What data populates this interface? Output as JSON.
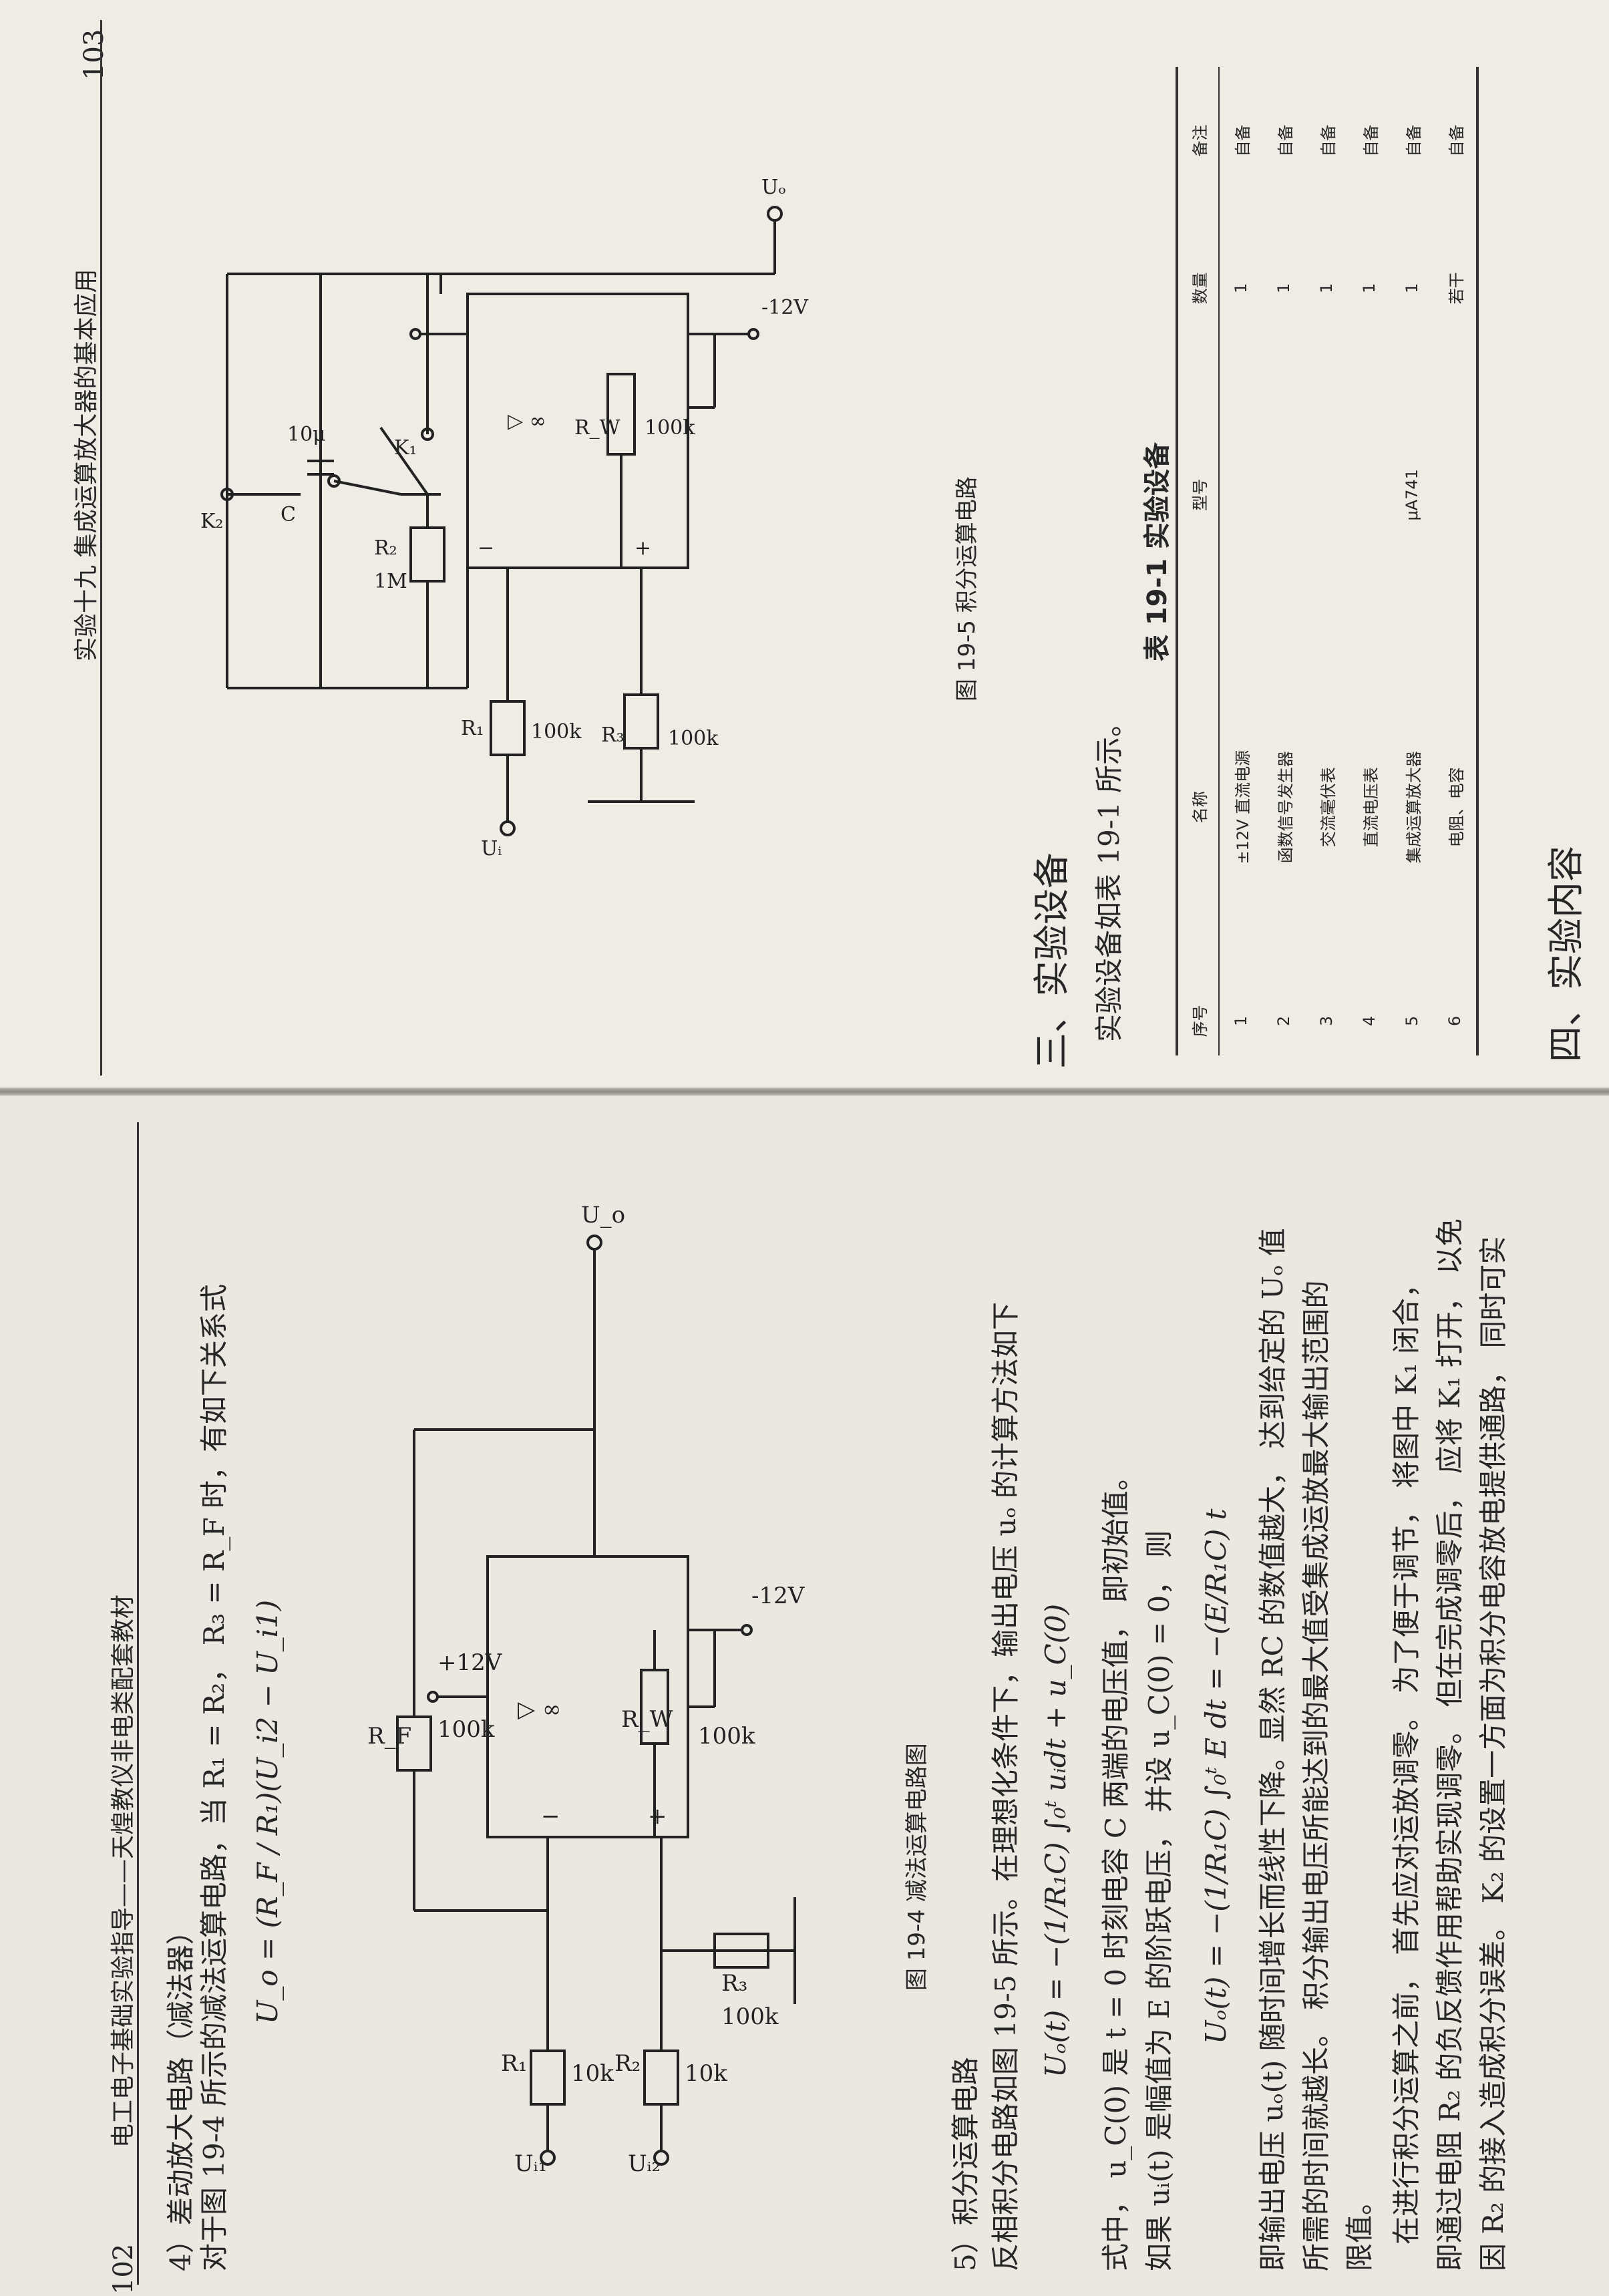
{
  "left_page": {
    "page_number": "102",
    "header": "电工电子基础实验指导——天煌教仪非电类配套教材",
    "sec4_title": "4）差动放大电路（减法器）",
    "sec4_para": "对于图 19-4 所示的减法运算电路，当 R₁ = R₂， R₃ = R_F 时，有如下关系式",
    "formula1": "U_o = (R_F / R₁)(U_i2 − U_i1)",
    "fig4_caption": "图 19-4   减法运算电路图",
    "fig4_labels": {
      "ui1": "Uᵢ₁",
      "ui2": "Uᵢ₂",
      "r1": "R₁",
      "r1v": "10k",
      "r2": "R₂",
      "r2v": "10k",
      "r3": "R₃",
      "r3v": "100k",
      "rf": "R_F",
      "rfv": "100k",
      "rw": "R_W",
      "rwv": "100k",
      "vpos": "+12V",
      "vneg": "-12V",
      "uo": "U_o",
      "inf": "▷ ∞",
      "minus": "−",
      "plus": "+"
    },
    "sec5_title": "5）积分运算电路",
    "sec5_p1": "反相积分电路如图 19-5 所示。在理想化条件下，输出电压 uₒ 的计算方法如下",
    "formula2": "Uₒ(t) = −(1/R₁C) ∫₀ᵗ uᵢdt + u_C(0)",
    "sec5_p2": "式中， u_C(0) 是 t = 0 时刻电容 C 两端的电压值， 即初始值。",
    "sec5_p3": "如果 uᵢ(t) 是幅值为 E 的阶跃电压， 并设 u_C(0) = 0， 则",
    "formula3": "Uₒ(t) = −(1/R₁C) ∫₀ᵗ E dt = −(E/R₁C) t",
    "sec5_p4": "即输出电压 uₒ(t) 随时间增长而线性下降。显然 RC 的数值越大， 达到给定的 Uₒ 值",
    "sec5_p5": "所需的时间就越长。 积分输出电压所能达到的最大值受集成运放最大输出范围的",
    "sec5_p6": "限值。",
    "sec5_p7": "在进行积分运算之前， 首先应对运放调零。 为了便于调节， 将图中 K₁ 闭合，",
    "sec5_p8": "即通过电阻 R₂ 的负反馈作用帮助实现调零。 但在完成调零后， 应将 K₁ 打开， 以免",
    "sec5_p9": "因 R₂ 的接入造成积分误差。 K₂ 的设置一方面为积分电容放电提供通路， 同时可实"
  },
  "right_page": {
    "page_number": "103",
    "header": "实验十九   集成运算放大器的基本应用",
    "fig5_caption": "图 19-5   积分运算电路",
    "fig5_labels": {
      "k2": "K₂",
      "c": "C",
      "cv": "10μ",
      "r2": "R₂",
      "r2v": "1M",
      "k1": "K₁",
      "r1": "R₁",
      "r1v": "100k",
      "r3": "R₃",
      "r3v": "100k",
      "rw": "R_W",
      "rwv": "100k",
      "vneg": "-12V",
      "ui": "Uᵢ",
      "uo": "Uₒ",
      "inf": "▷ ∞",
      "minus": "−",
      "plus": "+"
    },
    "sec3_title": "三、实验设备",
    "sec3_para": "实验设备如表 19-1 所示。",
    "table_caption": "表 19-1   实验设备",
    "table_headers": [
      "序号",
      "名称",
      "型号",
      "数量",
      "备注"
    ],
    "table_rows": [
      [
        "1",
        "±12V 直流电源",
        "",
        "1",
        "自备"
      ],
      [
        "2",
        "函数信号发生器",
        "",
        "1",
        "自备"
      ],
      [
        "3",
        "交流毫伏表",
        "",
        "1",
        "自备"
      ],
      [
        "4",
        "直流电压表",
        "",
        "1",
        "自备"
      ],
      [
        "5",
        "集成运算放大器",
        "μA741",
        "1",
        "自备"
      ],
      [
        "6",
        "电阻、电容",
        "",
        "若干",
        "自备"
      ]
    ],
    "sec4_title": "四、实验内容"
  }
}
